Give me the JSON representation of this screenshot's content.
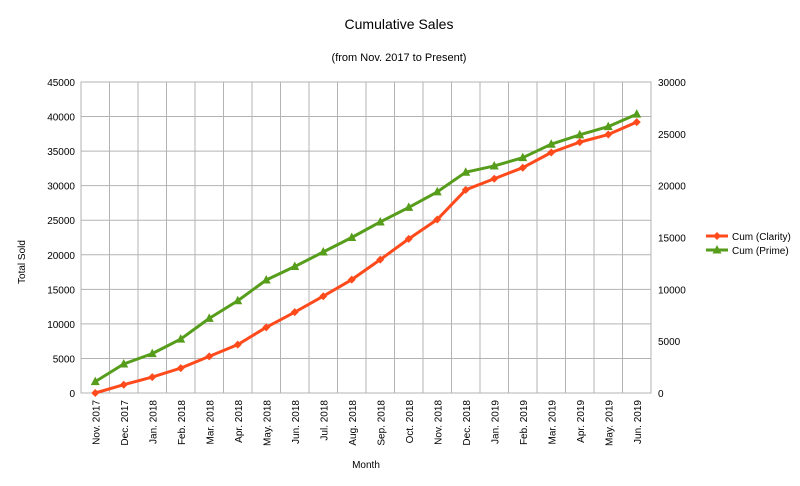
{
  "chart_data": {
    "type": "line",
    "title": "Cumulative Sales",
    "subtitle": "(from Nov. 2017 to Present)",
    "xlabel": "Month",
    "ylabel": "Total Sold",
    "y2label": "",
    "categories": [
      "Nov. 2017",
      "Dec. 2017",
      "Jan. 2018",
      "Feb. 2018",
      "Mar. 2018",
      "Apr. 2018",
      "May. 2018",
      "Jun. 2018",
      "Jul. 2018",
      "Aug. 2018",
      "Sep. 2018",
      "Oct. 2018",
      "Nov. 2018",
      "Dec. 2018",
      "Jan. 2019",
      "Feb. 2019",
      "Mar. 2019",
      "Apr. 2019",
      "May. 2019",
      "Jun. 2019"
    ],
    "ylim": [
      0,
      45000
    ],
    "yticks": [
      0,
      5000,
      10000,
      15000,
      20000,
      25000,
      30000,
      35000,
      40000,
      45000
    ],
    "y2lim": [
      0,
      30000
    ],
    "y2ticks": [
      0,
      5000,
      10000,
      15000,
      20000,
      25000,
      30000
    ],
    "grid": true,
    "legend_position": "right",
    "series": [
      {
        "name": "Cum (Clarity)",
        "axis": "left",
        "color": "#ff4a1c",
        "marker": "diamond",
        "values": [
          0,
          1200,
          2300,
          3600,
          5300,
          7000,
          9500,
          11700,
          14000,
          16400,
          19300,
          22300,
          25100,
          29400,
          31000,
          32600,
          34800,
          36300,
          37400,
          39200
        ]
      },
      {
        "name": "Cum (Prime)",
        "axis": "right",
        "color": "#579d1c",
        "marker": "triangle",
        "values": [
          1100,
          2800,
          3800,
          5200,
          7200,
          8900,
          10900,
          12200,
          13600,
          15000,
          16500,
          17900,
          19400,
          21300,
          21900,
          22700,
          24000,
          24900,
          25700,
          26900
        ]
      }
    ]
  }
}
